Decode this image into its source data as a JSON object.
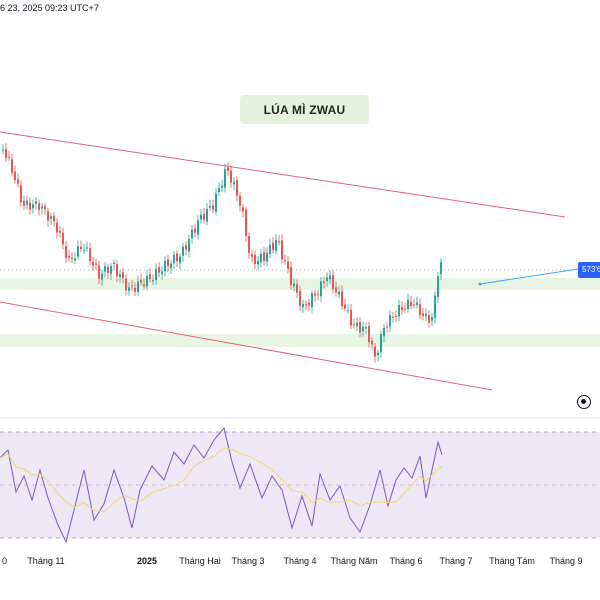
{
  "header": {
    "datetime_text": "6 23, 2025 09:23 UTC+7"
  },
  "title": {
    "label": "LÚA MÌ ZWAU"
  },
  "price_tag": {
    "label": "573'6"
  },
  "time_axis": {
    "labels": [
      {
        "text": "0",
        "bold": false
      },
      {
        "text": "Tháng 11",
        "bold": false
      },
      {
        "text": "2025",
        "bold": true
      },
      {
        "text": "Tháng Hai",
        "bold": false
      },
      {
        "text": "Tháng 3",
        "bold": false
      },
      {
        "text": "Tháng 4",
        "bold": false
      },
      {
        "text": "Tháng Năm",
        "bold": false
      },
      {
        "text": "Tháng 6",
        "bold": false
      },
      {
        "text": "Tháng 7",
        "bold": false
      },
      {
        "text": "Tháng Tám",
        "bold": false
      },
      {
        "text": "Tháng 9",
        "bold": false
      }
    ]
  },
  "colors": {
    "up_candle": "#26a69a",
    "down_candle": "#ef5350",
    "channel_line": "#e06377",
    "zone_fill": "#e8f5e4",
    "rsi_line": "#7e57c2",
    "rsi_ma_line": "#f5d76e",
    "rsi_band": "#ede7f6",
    "price_tag": "#2962ff",
    "projection_line": "#42a5f5"
  },
  "icons": {
    "camera": "camera-icon"
  }
}
